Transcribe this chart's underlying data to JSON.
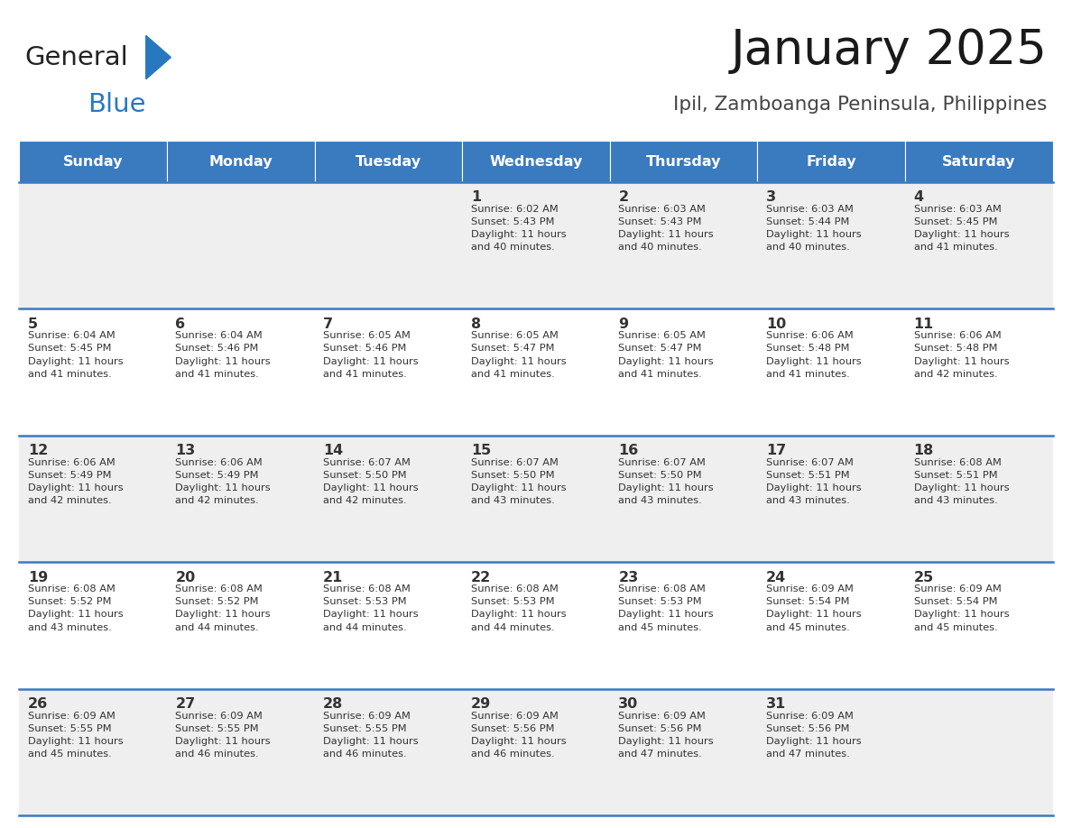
{
  "title": "January 2025",
  "subtitle": "Ipil, Zamboanga Peninsula, Philippines",
  "header_bg": "#3a7abf",
  "header_text_color": "#ffffff",
  "weekdays": [
    "Sunday",
    "Monday",
    "Tuesday",
    "Wednesday",
    "Thursday",
    "Friday",
    "Saturday"
  ],
  "row_bg_even": "#efefef",
  "row_bg_odd": "#ffffff",
  "cell_border_color": "#3a7abf",
  "day_number_color": "#333333",
  "cell_text_color": "#333333",
  "calendar_data": [
    [
      null,
      null,
      null,
      {
        "day": 1,
        "sunrise": "6:02 AM",
        "sunset": "5:43 PM",
        "daylight_hours": 11,
        "daylight_minutes": 40
      },
      {
        "day": 2,
        "sunrise": "6:03 AM",
        "sunset": "5:43 PM",
        "daylight_hours": 11,
        "daylight_minutes": 40
      },
      {
        "day": 3,
        "sunrise": "6:03 AM",
        "sunset": "5:44 PM",
        "daylight_hours": 11,
        "daylight_minutes": 40
      },
      {
        "day": 4,
        "sunrise": "6:03 AM",
        "sunset": "5:45 PM",
        "daylight_hours": 11,
        "daylight_minutes": 41
      }
    ],
    [
      {
        "day": 5,
        "sunrise": "6:04 AM",
        "sunset": "5:45 PM",
        "daylight_hours": 11,
        "daylight_minutes": 41
      },
      {
        "day": 6,
        "sunrise": "6:04 AM",
        "sunset": "5:46 PM",
        "daylight_hours": 11,
        "daylight_minutes": 41
      },
      {
        "day": 7,
        "sunrise": "6:05 AM",
        "sunset": "5:46 PM",
        "daylight_hours": 11,
        "daylight_minutes": 41
      },
      {
        "day": 8,
        "sunrise": "6:05 AM",
        "sunset": "5:47 PM",
        "daylight_hours": 11,
        "daylight_minutes": 41
      },
      {
        "day": 9,
        "sunrise": "6:05 AM",
        "sunset": "5:47 PM",
        "daylight_hours": 11,
        "daylight_minutes": 41
      },
      {
        "day": 10,
        "sunrise": "6:06 AM",
        "sunset": "5:48 PM",
        "daylight_hours": 11,
        "daylight_minutes": 41
      },
      {
        "day": 11,
        "sunrise": "6:06 AM",
        "sunset": "5:48 PM",
        "daylight_hours": 11,
        "daylight_minutes": 42
      }
    ],
    [
      {
        "day": 12,
        "sunrise": "6:06 AM",
        "sunset": "5:49 PM",
        "daylight_hours": 11,
        "daylight_minutes": 42
      },
      {
        "day": 13,
        "sunrise": "6:06 AM",
        "sunset": "5:49 PM",
        "daylight_hours": 11,
        "daylight_minutes": 42
      },
      {
        "day": 14,
        "sunrise": "6:07 AM",
        "sunset": "5:50 PM",
        "daylight_hours": 11,
        "daylight_minutes": 42
      },
      {
        "day": 15,
        "sunrise": "6:07 AM",
        "sunset": "5:50 PM",
        "daylight_hours": 11,
        "daylight_minutes": 43
      },
      {
        "day": 16,
        "sunrise": "6:07 AM",
        "sunset": "5:50 PM",
        "daylight_hours": 11,
        "daylight_minutes": 43
      },
      {
        "day": 17,
        "sunrise": "6:07 AM",
        "sunset": "5:51 PM",
        "daylight_hours": 11,
        "daylight_minutes": 43
      },
      {
        "day": 18,
        "sunrise": "6:08 AM",
        "sunset": "5:51 PM",
        "daylight_hours": 11,
        "daylight_minutes": 43
      }
    ],
    [
      {
        "day": 19,
        "sunrise": "6:08 AM",
        "sunset": "5:52 PM",
        "daylight_hours": 11,
        "daylight_minutes": 43
      },
      {
        "day": 20,
        "sunrise": "6:08 AM",
        "sunset": "5:52 PM",
        "daylight_hours": 11,
        "daylight_minutes": 44
      },
      {
        "day": 21,
        "sunrise": "6:08 AM",
        "sunset": "5:53 PM",
        "daylight_hours": 11,
        "daylight_minutes": 44
      },
      {
        "day": 22,
        "sunrise": "6:08 AM",
        "sunset": "5:53 PM",
        "daylight_hours": 11,
        "daylight_minutes": 44
      },
      {
        "day": 23,
        "sunrise": "6:08 AM",
        "sunset": "5:53 PM",
        "daylight_hours": 11,
        "daylight_minutes": 45
      },
      {
        "day": 24,
        "sunrise": "6:09 AM",
        "sunset": "5:54 PM",
        "daylight_hours": 11,
        "daylight_minutes": 45
      },
      {
        "day": 25,
        "sunrise": "6:09 AM",
        "sunset": "5:54 PM",
        "daylight_hours": 11,
        "daylight_minutes": 45
      }
    ],
    [
      {
        "day": 26,
        "sunrise": "6:09 AM",
        "sunset": "5:55 PM",
        "daylight_hours": 11,
        "daylight_minutes": 45
      },
      {
        "day": 27,
        "sunrise": "6:09 AM",
        "sunset": "5:55 PM",
        "daylight_hours": 11,
        "daylight_minutes": 46
      },
      {
        "day": 28,
        "sunrise": "6:09 AM",
        "sunset": "5:55 PM",
        "daylight_hours": 11,
        "daylight_minutes": 46
      },
      {
        "day": 29,
        "sunrise": "6:09 AM",
        "sunset": "5:56 PM",
        "daylight_hours": 11,
        "daylight_minutes": 46
      },
      {
        "day": 30,
        "sunrise": "6:09 AM",
        "sunset": "5:56 PM",
        "daylight_hours": 11,
        "daylight_minutes": 47
      },
      {
        "day": 31,
        "sunrise": "6:09 AM",
        "sunset": "5:56 PM",
        "daylight_hours": 11,
        "daylight_minutes": 47
      },
      null
    ]
  ],
  "logo_text1": "General",
  "logo_text2": "Blue",
  "logo_color1": "#222222",
  "logo_color2": "#2878c0",
  "figsize": [
    11.88,
    9.18
  ],
  "dpi": 100
}
